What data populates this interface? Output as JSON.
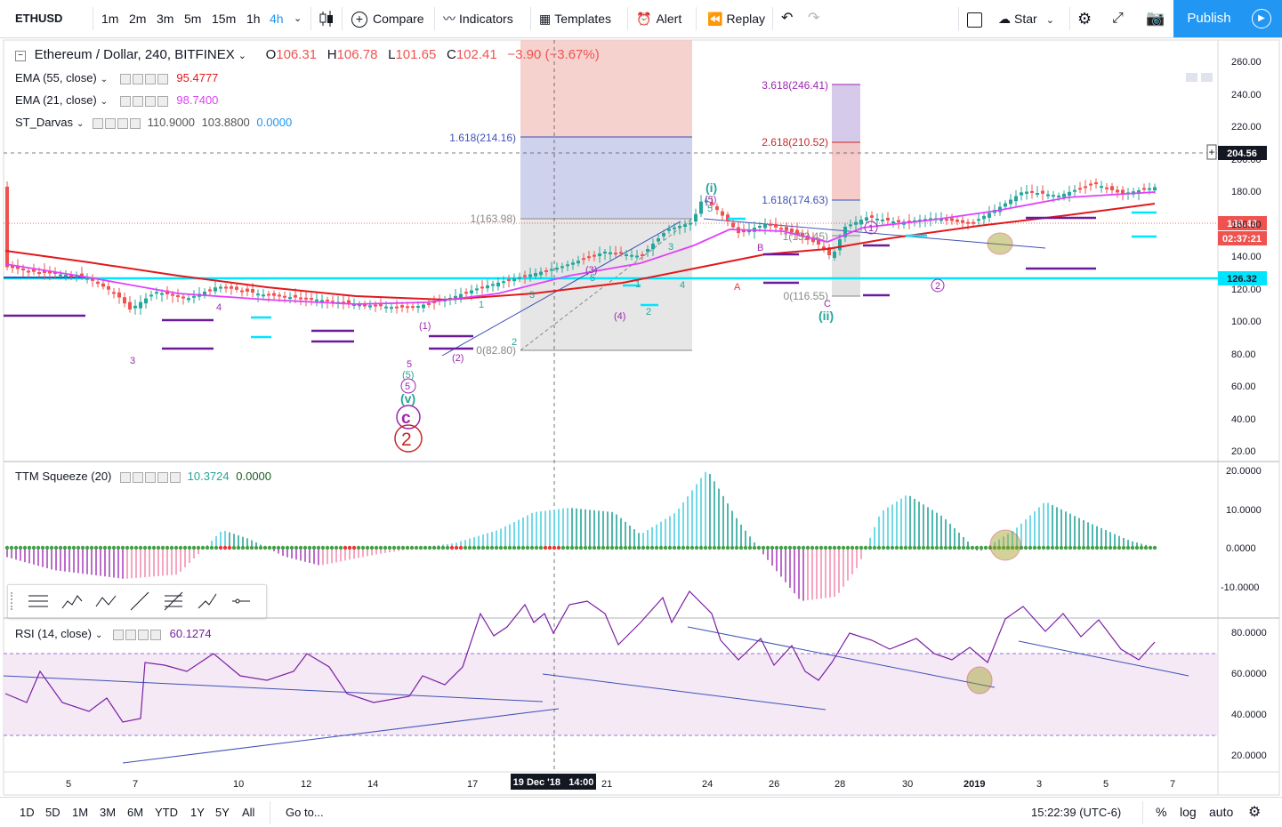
{
  "toolbar": {
    "symbol": "ETHUSD",
    "intervals": [
      "1m",
      "2m",
      "3m",
      "5m",
      "15m",
      "1h",
      "4h"
    ],
    "active_interval": "4h",
    "compare": "Compare",
    "indicators": "Indicators",
    "templates": "Templates",
    "alert": "Alert",
    "replay": "Replay",
    "star": "Star",
    "publish": "Publish"
  },
  "legend": {
    "title": "Ethereum / Dollar, 240, BITFINEX",
    "open_label": "O",
    "open": "106.31",
    "high_label": "H",
    "high": "106.78",
    "low_label": "L",
    "low": "101.65",
    "close_label": "C",
    "close": "102.41",
    "change": "−3.90 (−3.67%)",
    "ema55_label": "EMA (55, close)",
    "ema55_value": "95.4777",
    "ema21_label": "EMA (21, close)",
    "ema21_value": "98.7400",
    "darvas_label": "ST_Darvas",
    "darvas_v1": "110.9000",
    "darvas_v2": "103.8800",
    "darvas_v3": "0.0000",
    "ttm_label": "TTM Squeeze (20)",
    "ttm_v1": "10.3724",
    "ttm_v2": "0.0000",
    "rsi_label": "RSI (14, close)",
    "rsi_value": "60.1274"
  },
  "price_axis": [
    "260.00",
    "240.00",
    "220.00",
    "200.00",
    "180.00",
    "160.00",
    "140.00",
    "120.00",
    "100.00",
    "80.00",
    "60.00",
    "40.00",
    "20.00"
  ],
  "price_badges": {
    "crosshair": "204.56",
    "last": "160.43",
    "countdown": "02:37:21",
    "hline": "126.32"
  },
  "ttm_axis": [
    "20.0000",
    "10.0000",
    "0.0000",
    "-10.0000"
  ],
  "rsi_axis": [
    "80.0000",
    "60.0000",
    "40.0000",
    "20.0000"
  ],
  "time_axis": [
    "5",
    "7",
    "10",
    "12",
    "14",
    "17",
    "21",
    "24",
    "26",
    "28",
    "30",
    "2019",
    "3",
    "5",
    "7"
  ],
  "time_crosshair": "19 Dec '18   14:00",
  "fib_labels": {
    "a": "1.618(214.16)",
    "b": "1(163.98)",
    "c": "0(82.80)",
    "d": "3.618(246.41)",
    "e": "2.618(210.52)",
    "f": "1.618(174.63)",
    "g": "1(152.45)",
    "h": "0(116.55)"
  },
  "wave_labels": {
    "w3": "3",
    "w4": "4",
    "w5": "5",
    "w5c": "(5)",
    "wv": "(v)",
    "wc": "c",
    "w2": "2",
    "w1p": "(1)",
    "w2p": "(2)",
    "w3p": "(3)",
    "w4p": "(4)",
    "w1": "1",
    "w2s": "2",
    "wi": "(i)",
    "wii": "(ii)",
    "wA": "A",
    "wB": "B",
    "wC": "C",
    "c1": "1",
    "c2": "2"
  },
  "bottombar": {
    "ranges": [
      "1D",
      "5D",
      "1M",
      "3M",
      "6M",
      "YTD",
      "1Y",
      "5Y",
      "All"
    ],
    "goto": "Go to...",
    "clock": "15:22:39 (UTC-6)",
    "percent": "%",
    "log": "log",
    "auto": "auto"
  },
  "colors": {
    "accent": "#2196f3",
    "ema55": "#e0191b",
    "ema21": "#e040fb",
    "cyan": "#00e5ff",
    "up": "#26a69a",
    "down": "#ef5350"
  }
}
